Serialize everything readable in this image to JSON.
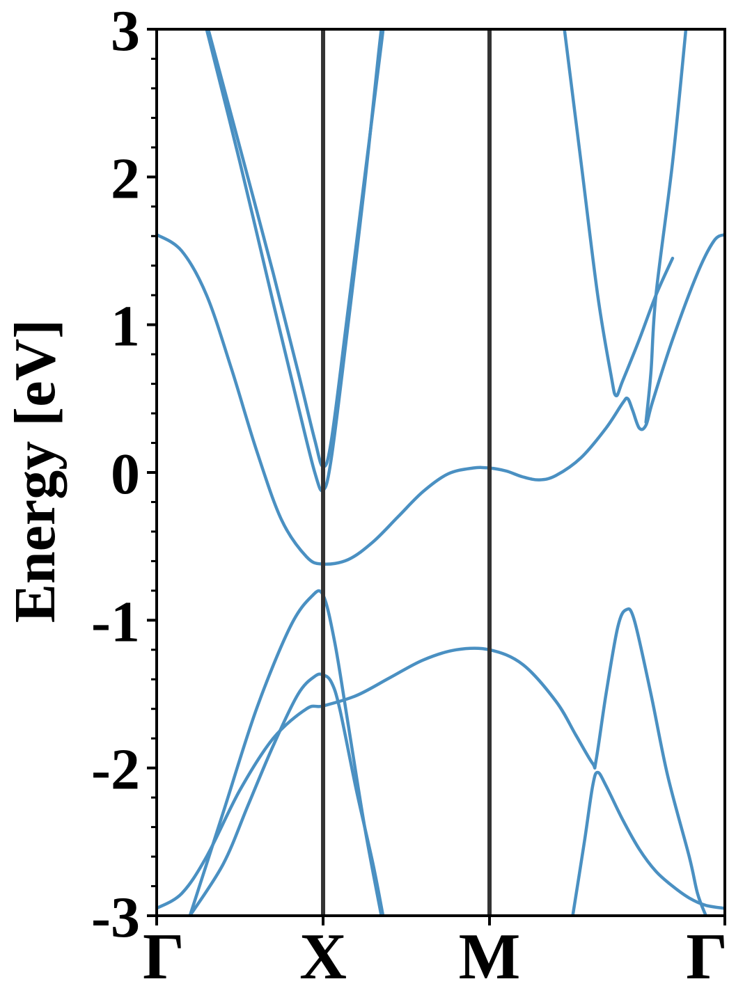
{
  "chart_data": {
    "type": "line",
    "title": "",
    "xlabel": "",
    "ylabel": "Energy [eV]",
    "ylim": [
      -3,
      3
    ],
    "xlim": [
      0,
      3.414
    ],
    "yticks": [
      -3,
      -2,
      -1,
      0,
      1,
      2,
      3
    ],
    "ytick_labels": [
      "-3",
      "-2",
      "-1",
      "0",
      "1",
      "2",
      "3"
    ],
    "y_minor_step": 0.2,
    "xticks": [
      {
        "x": 0,
        "label": "Γ"
      },
      {
        "x": 1,
        "label": "X"
      },
      {
        "x": 2,
        "label": "M"
      },
      {
        "x": 3.414,
        "label": "Γ"
      }
    ],
    "vlines": [
      1,
      2
    ],
    "grid": false,
    "colors": {
      "band": "#4a90c2",
      "vline": "#333333",
      "axes": "#000000"
    },
    "series": [
      {
        "values": [
          [
            0,
            1.61
          ],
          [
            0.15,
            1.5
          ],
          [
            0.3,
            1.2
          ],
          [
            0.45,
            0.7
          ],
          [
            0.6,
            0.15
          ],
          [
            0.75,
            -0.32
          ],
          [
            0.9,
            -0.57
          ],
          [
            1,
            -0.62
          ],
          [
            1.15,
            -0.59
          ],
          [
            1.3,
            -0.47
          ],
          [
            1.45,
            -0.3
          ],
          [
            1.6,
            -0.13
          ],
          [
            1.75,
            -0.01
          ],
          [
            1.9,
            0.03
          ],
          [
            2,
            0.03
          ],
          [
            2.1,
            0.01
          ],
          [
            2.2,
            -0.03
          ],
          [
            2.3,
            -0.05
          ],
          [
            2.4,
            -0.02
          ],
          [
            2.55,
            0.1
          ],
          [
            2.7,
            0.3
          ],
          [
            2.8,
            0.47
          ],
          [
            2.83,
            0.5
          ],
          [
            2.86,
            0.42
          ],
          [
            2.9,
            0.3
          ],
          [
            2.94,
            0.32
          ],
          [
            2.98,
            0.48
          ],
          [
            3.1,
            0.9
          ],
          [
            3.25,
            1.35
          ],
          [
            3.35,
            1.57
          ],
          [
            3.414,
            1.61
          ]
        ]
      },
      {
        "values": [
          [
            0.31,
            3
          ],
          [
            0.5,
            2.2
          ],
          [
            0.7,
            1.35
          ],
          [
            0.85,
            0.68
          ],
          [
            0.95,
            0.22
          ],
          [
            1,
            0.04
          ],
          [
            1.05,
            0.22
          ],
          [
            1.15,
            1.1
          ],
          [
            1.25,
            2.0
          ],
          [
            1.35,
            2.9
          ],
          [
            1.36,
            3
          ]
        ]
      },
      {
        "values": [
          [
            0.3,
            3
          ],
          [
            0.5,
            2.1
          ],
          [
            0.7,
            1.15
          ],
          [
            0.85,
            0.45
          ],
          [
            0.95,
            0
          ],
          [
            1,
            -0.12
          ],
          [
            1.05,
            0.1
          ],
          [
            1.15,
            1.0
          ],
          [
            1.25,
            1.95
          ],
          [
            1.33,
            2.8
          ],
          [
            1.35,
            3
          ]
        ]
      },
      {
        "values": [
          [
            0.2,
            -3
          ],
          [
            0.4,
            -2.3
          ],
          [
            0.6,
            -1.6
          ],
          [
            0.8,
            -1.05
          ],
          [
            0.93,
            -0.84
          ],
          [
            1,
            -0.83
          ],
          [
            1.07,
            -1.15
          ],
          [
            1.15,
            -1.7
          ],
          [
            1.25,
            -2.4
          ],
          [
            1.35,
            -3
          ]
        ]
      },
      {
        "values": [
          [
            0.2,
            -3
          ],
          [
            0.4,
            -2.65
          ],
          [
            0.55,
            -2.25
          ],
          [
            0.7,
            -1.85
          ],
          [
            0.85,
            -1.5
          ],
          [
            0.95,
            -1.38
          ],
          [
            1,
            -1.37
          ],
          [
            1.05,
            -1.42
          ],
          [
            1.1,
            -1.6
          ],
          [
            1.2,
            -2.15
          ],
          [
            1.3,
            -2.65
          ],
          [
            1.36,
            -3
          ]
        ]
      },
      {
        "values": [
          [
            0,
            -2.95
          ],
          [
            0.15,
            -2.85
          ],
          [
            0.3,
            -2.6
          ],
          [
            0.5,
            -2.15
          ],
          [
            0.7,
            -1.8
          ],
          [
            0.9,
            -1.6
          ],
          [
            1,
            -1.58
          ],
          [
            1.2,
            -1.51
          ],
          [
            1.4,
            -1.39
          ],
          [
            1.6,
            -1.27
          ],
          [
            1.8,
            -1.2
          ],
          [
            2,
            -1.2
          ],
          [
            2.2,
            -1.3
          ],
          [
            2.4,
            -1.55
          ],
          [
            2.52,
            -1.78
          ],
          [
            2.62,
            -1.97
          ],
          [
            2.64,
            -1.95
          ],
          [
            2.7,
            -1.5
          ],
          [
            2.77,
            -1.05
          ],
          [
            2.82,
            -0.93
          ],
          [
            2.87,
            -1.0
          ],
          [
            2.97,
            -1.5
          ],
          [
            3.07,
            -2.05
          ],
          [
            3.2,
            -2.6
          ],
          [
            3.25,
            -2.85
          ],
          [
            3.3,
            -3
          ]
        ]
      },
      {
        "values": [
          [
            2.5,
            -3
          ],
          [
            2.57,
            -2.5
          ],
          [
            2.62,
            -2.12
          ],
          [
            2.65,
            -2.03
          ],
          [
            2.7,
            -2.12
          ],
          [
            2.8,
            -2.35
          ],
          [
            2.9,
            -2.55
          ],
          [
            3.0,
            -2.7
          ],
          [
            3.1,
            -2.8
          ],
          [
            3.2,
            -2.88
          ],
          [
            3.3,
            -2.93
          ],
          [
            3.414,
            -2.95
          ]
        ]
      },
      {
        "values": [
          [
            2.45,
            3
          ],
          [
            2.55,
            2.1
          ],
          [
            2.65,
            1.2
          ],
          [
            2.73,
            0.66
          ],
          [
            2.76,
            0.52
          ],
          [
            2.8,
            0.62
          ],
          [
            2.9,
            0.9
          ],
          [
            3.0,
            1.2
          ],
          [
            3.1,
            1.45
          ]
        ]
      },
      {
        "values": [
          [
            3.18,
            3
          ],
          [
            3.1,
            2.1
          ],
          [
            3.0,
            1.2
          ],
          [
            2.97,
            0.68
          ],
          [
            2.94,
            0.34
          ]
        ]
      }
    ]
  }
}
